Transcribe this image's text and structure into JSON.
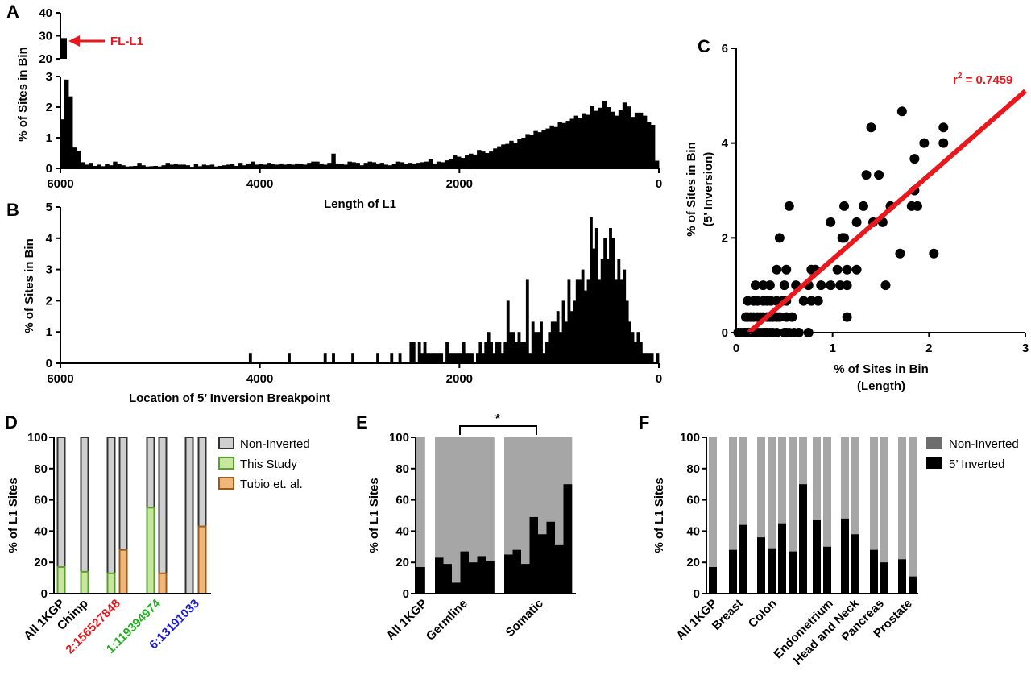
{
  "colors": {
    "black": "#000000",
    "red": "#e8191e",
    "gray": "#a6a6a7",
    "darkgray": "#6d6d6d",
    "green_fill": "#c8e6a0",
    "green_edge": "#5aa02c",
    "orange_fill": "#efb87a",
    "orange_edge": "#9c5b1c",
    "label_red": "#e8191e",
    "label_green": "#22b022",
    "label_blue": "#1a1ad6"
  },
  "chart_data": [
    {
      "panel": "A",
      "type": "bar",
      "title": "",
      "xlabel": "Length of L1",
      "ylabel": "% of Sites in Bin",
      "x_reversed": true,
      "xlim": [
        6000,
        0
      ],
      "ylim": [
        0,
        3
      ],
      "ylim_upper_break": [
        20,
        40
      ],
      "x_ticks": [
        "6000",
        "4000",
        "2000",
        "0"
      ],
      "y_ticks": [
        "0",
        "1",
        "2",
        "3"
      ],
      "y_ticks_upper": [
        "20",
        "30",
        "40"
      ],
      "annotation": "FL-L1",
      "full_length_bin_value": 29,
      "bin_width": 50,
      "values": [
        1.6,
        2.9,
        2.35,
        0.68,
        0.58,
        0.2,
        0.12,
        0.18,
        0.08,
        0.12,
        0.07,
        0.14,
        0.1,
        0.22,
        0.14,
        0.1,
        0.06,
        0.07,
        0.08,
        0.18,
        0.1,
        0.06,
        0.07,
        0.08,
        0.06,
        0.1,
        0.18,
        0.12,
        0.14,
        0.12,
        0.12,
        0.1,
        0.05,
        0.14,
        0.07,
        0.12,
        0.1,
        0.12,
        0.06,
        0.08,
        0.1,
        0.12,
        0.14,
        0.08,
        0.18,
        0.1,
        0.16,
        0.22,
        0.12,
        0.14,
        0.12,
        0.18,
        0.14,
        0.12,
        0.16,
        0.12,
        0.14,
        0.12,
        0.16,
        0.14,
        0.12,
        0.18,
        0.22,
        0.22,
        0.16,
        0.12,
        0.18,
        0.48,
        0.16,
        0.14,
        0.12,
        0.22,
        0.2,
        0.18,
        0.1,
        0.18,
        0.22,
        0.2,
        0.16,
        0.18,
        0.12,
        0.1,
        0.15,
        0.22,
        0.2,
        0.14,
        0.18,
        0.16,
        0.18,
        0.2,
        0.22,
        0.3,
        0.16,
        0.22,
        0.2,
        0.26,
        0.3,
        0.42,
        0.38,
        0.34,
        0.42,
        0.48,
        0.45,
        0.6,
        0.55,
        0.5,
        0.55,
        0.65,
        0.72,
        0.78,
        0.8,
        0.9,
        0.82,
        0.95,
        1.0,
        1.12,
        1.08,
        1.22,
        1.18,
        1.25,
        1.3,
        1.4,
        1.35,
        1.5,
        1.48,
        1.55,
        1.62,
        1.72,
        1.65,
        1.8,
        1.75,
        2.05,
        1.88,
        1.98,
        2.2,
        2.0,
        1.85,
        1.72,
        1.9,
        2.15,
        2.02,
        1.68,
        1.82,
        1.82,
        1.72,
        1.5,
        1.42,
        0.25
      ]
    },
    {
      "panel": "B",
      "type": "bar",
      "title": "",
      "xlabel": "Location of 5’ Inversion Breakpoint",
      "ylabel": "% of Sites in Bin",
      "x_reversed": true,
      "xlim": [
        6000,
        0
      ],
      "ylim": [
        0,
        5
      ],
      "x_ticks": [
        "6000",
        "4000",
        "2000",
        "0"
      ],
      "y_ticks": [
        "0",
        "1",
        "2",
        "3",
        "4",
        "5"
      ],
      "bin_width": 50,
      "values": [
        0,
        0,
        0,
        0,
        0,
        0,
        0,
        0,
        0,
        0,
        0,
        0,
        0,
        0,
        0,
        0,
        0,
        0,
        0,
        0,
        0,
        0,
        0,
        0,
        0,
        0,
        0,
        0,
        0,
        0,
        0,
        0,
        0,
        0,
        0,
        0,
        0,
        0,
        0,
        0,
        0,
        0,
        0,
        0,
        0,
        0,
        0,
        0,
        0,
        0,
        0,
        0,
        0,
        0,
        0,
        0,
        0,
        0,
        0,
        0,
        0,
        0,
        0,
        0,
        0,
        0,
        0,
        0,
        0.33,
        0,
        0,
        0,
        0,
        0,
        0,
        0,
        0,
        0,
        0,
        0,
        0,
        0,
        0.33,
        0,
        0,
        0,
        0,
        0,
        0,
        0,
        0,
        0,
        0,
        0,
        0,
        0.33,
        0,
        0,
        0.33,
        0,
        0,
        0,
        0,
        0,
        0,
        0.33,
        0,
        0,
        0,
        0,
        0,
        0,
        0,
        0,
        0.33,
        0,
        0,
        0,
        0,
        0.33,
        0,
        0,
        0.33,
        0,
        0,
        0,
        0.67,
        0.67,
        0,
        0.67,
        0.33,
        0.67,
        0.33,
        0.33,
        0.33,
        0.33,
        0.33,
        0.33,
        0,
        0.67,
        0.33,
        0.33,
        0.33,
        0.33,
        0.33,
        0.67,
        0.33,
        0.33,
        0.33,
        0,
        0.33,
        0.67,
        0.33,
        0.67,
        1.0,
        0.67,
        0.33,
        0.67,
        0.67,
        0.33,
        0.67,
        2.0,
        1.0,
        1.0,
        0.67,
        1.0,
        0.67,
        0.67,
        2.67,
        0.33,
        1.33,
        1.0,
        1.0,
        1.33,
        0.33,
        0.67,
        1.0,
        1.33,
        1.33,
        1.67,
        1.0,
        2.0,
        1.33,
        2.67,
        1.67,
        2.0,
        2.67,
        2.67,
        3.0,
        2.33,
        2.67,
        4.67,
        3.67,
        4.33,
        2.67,
        3.33,
        4.0,
        3.33,
        4.33,
        4.0,
        2.67,
        3.33,
        2.67,
        3.0,
        2.0,
        1.33,
        1.0,
        0.67,
        1.0,
        0.67,
        0.33,
        0.33,
        0.33,
        0.33,
        0,
        0.33
      ]
    },
    {
      "panel": "C",
      "type": "scatter",
      "title": "",
      "xlabel": "% of Sites in Bin (Length)",
      "ylabel": "% of Sites in Bin (5’ Inversion)",
      "xlabel_lines": [
        "% of Sites in Bin",
        "(Length)"
      ],
      "ylabel_lines": [
        "% of Sites in Bin",
        "(5’ Inversion)"
      ],
      "xlim": [
        0,
        3
      ],
      "ylim": [
        0,
        6
      ],
      "x_ticks": [
        "0",
        "1",
        "2",
        "3"
      ],
      "y_ticks": [
        "0",
        "2",
        "4",
        "6"
      ],
      "annotation": "r",
      "annotation_sup": "2",
      "annotation_rest": " = 0.7459",
      "fit_line": {
        "x": [
          0.13,
          3.0
        ],
        "y": [
          0.0,
          5.1
        ]
      },
      "points": [
        [
          0.02,
          0
        ],
        [
          0.05,
          0
        ],
        [
          0.08,
          0
        ],
        [
          0.1,
          0
        ],
        [
          0.12,
          0
        ],
        [
          0.15,
          0
        ],
        [
          0.18,
          0
        ],
        [
          0.2,
          0
        ],
        [
          0.22,
          0
        ],
        [
          0.25,
          0
        ],
        [
          0.28,
          0
        ],
        [
          0.3,
          0
        ],
        [
          0.32,
          0
        ],
        [
          0.35,
          0
        ],
        [
          0.38,
          0
        ],
        [
          0.42,
          0
        ],
        [
          0.5,
          0
        ],
        [
          0.52,
          0
        ],
        [
          0.55,
          0
        ],
        [
          0.6,
          0
        ],
        [
          0.65,
          0
        ],
        [
          0.75,
          0
        ],
        [
          0.1,
          0.33
        ],
        [
          0.12,
          0.33
        ],
        [
          0.15,
          0.33
        ],
        [
          0.18,
          0.33
        ],
        [
          0.22,
          0.33
        ],
        [
          0.25,
          0.33
        ],
        [
          0.28,
          0.33
        ],
        [
          0.32,
          0.33
        ],
        [
          0.35,
          0.33
        ],
        [
          0.38,
          0.33
        ],
        [
          0.42,
          0.33
        ],
        [
          0.45,
          0.33
        ],
        [
          0.52,
          0.33
        ],
        [
          0.58,
          0.33
        ],
        [
          0.12,
          0.67
        ],
        [
          0.18,
          0.67
        ],
        [
          0.22,
          0.67
        ],
        [
          0.28,
          0.67
        ],
        [
          0.32,
          0.67
        ],
        [
          0.36,
          0.67
        ],
        [
          0.42,
          0.67
        ],
        [
          0.48,
          0.67
        ],
        [
          0.52,
          0.67
        ],
        [
          0.7,
          0.67
        ],
        [
          0.78,
          0.67
        ],
        [
          0.85,
          0.67
        ],
        [
          1.15,
          0.33
        ],
        [
          0.2,
          1.0
        ],
        [
          0.28,
          1.0
        ],
        [
          0.35,
          1.0
        ],
        [
          0.5,
          1.0
        ],
        [
          0.62,
          1.0
        ],
        [
          0.75,
          1.0
        ],
        [
          0.88,
          1.0
        ],
        [
          0.98,
          1.0
        ],
        [
          1.08,
          1.0
        ],
        [
          1.15,
          1.0
        ],
        [
          1.55,
          1.0
        ],
        [
          0.42,
          1.33
        ],
        [
          0.52,
          1.33
        ],
        [
          0.78,
          1.33
        ],
        [
          0.82,
          1.33
        ],
        [
          1.05,
          1.33
        ],
        [
          1.15,
          1.33
        ],
        [
          1.25,
          1.33
        ],
        [
          0.45,
          2.0
        ],
        [
          0.55,
          2.67
        ],
        [
          0.98,
          2.33
        ],
        [
          1.1,
          2.0
        ],
        [
          1.12,
          2.0
        ],
        [
          1.25,
          2.33
        ],
        [
          1.32,
          2.67
        ],
        [
          1.42,
          2.33
        ],
        [
          1.52,
          2.33
        ],
        [
          1.12,
          2.67
        ],
        [
          1.35,
          3.33
        ],
        [
          1.48,
          3.33
        ],
        [
          1.4,
          4.33
        ],
        [
          1.6,
          2.67
        ],
        [
          1.7,
          1.67
        ],
        [
          1.72,
          4.67
        ],
        [
          1.82,
          2.67
        ],
        [
          1.85,
          3.0
        ],
        [
          1.88,
          2.67
        ],
        [
          1.85,
          3.67
        ],
        [
          1.95,
          4.0
        ],
        [
          2.05,
          1.67
        ],
        [
          2.15,
          4.0
        ],
        [
          2.15,
          4.33
        ]
      ]
    },
    {
      "panel": "D",
      "type": "bar",
      "stacked": true,
      "xlabel": "",
      "ylabel": "% of L1 Sites",
      "ylim": [
        0,
        100
      ],
      "y_ticks": [
        "0",
        "20",
        "40",
        "60",
        "80",
        "100"
      ],
      "legend": [
        "Non-Inverted",
        "This Study",
        "Tubio et. al."
      ],
      "categories": [
        "All 1KGP",
        "Chimp",
        "2:156527848",
        "1:119394974",
        "6:13191033"
      ],
      "bars": [
        {
          "group": "All 1KGP",
          "series": "This Study",
          "inverted": 17
        },
        {
          "group": "Chimp",
          "series": "This Study",
          "inverted": 14
        },
        {
          "group": "2:156527848",
          "series": "This Study",
          "inverted": 13
        },
        {
          "group": "2:156527848",
          "series": "Tubio et. al.",
          "inverted": 28
        },
        {
          "group": "1:119394974",
          "series": "This Study",
          "inverted": 55
        },
        {
          "group": "1:119394974",
          "series": "Tubio et. al.",
          "inverted": 13
        },
        {
          "group": "6:13191033",
          "series": "This Study",
          "inverted": 0
        },
        {
          "group": "6:13191033",
          "series": "Tubio et. al.",
          "inverted": 43
        }
      ]
    },
    {
      "panel": "E",
      "type": "bar",
      "stacked": true,
      "xlabel": "",
      "ylabel": "% of L1 Sites",
      "ylim": [
        0,
        100
      ],
      "y_ticks": [
        "0",
        "20",
        "40",
        "60",
        "80",
        "100"
      ],
      "categories": [
        "All 1KGP",
        "Germline",
        "Somatic"
      ],
      "significance": "*",
      "groups": [
        {
          "name": "All 1KGP",
          "inverted": [
            17
          ]
        },
        {
          "name": "Germline",
          "inverted": [
            23,
            19,
            7,
            27,
            20,
            24,
            21
          ]
        },
        {
          "name": "Somatic",
          "inverted": [
            25,
            28,
            19,
            49,
            38,
            46,
            31,
            70
          ]
        }
      ]
    },
    {
      "panel": "F",
      "type": "bar",
      "stacked": true,
      "xlabel": "",
      "ylabel": "% of L1 Sites",
      "ylim": [
        0,
        100
      ],
      "y_ticks": [
        "0",
        "20",
        "40",
        "60",
        "80",
        "100"
      ],
      "legend": [
        "Non-Inverted",
        "5’ Inverted"
      ],
      "categories": [
        "All 1KGP",
        "Breast",
        "Colon",
        "Endometrium",
        "Head and Neck",
        "Pancreas",
        "Prostate"
      ],
      "groups": [
        {
          "name": "All 1KGP",
          "inverted": [
            17
          ]
        },
        {
          "name": "Breast",
          "inverted": [
            28,
            44
          ]
        },
        {
          "name": "Colon",
          "inverted": [
            36,
            29,
            45,
            27,
            70
          ]
        },
        {
          "name": "Endometrium",
          "inverted": [
            47,
            30
          ]
        },
        {
          "name": "Head and Neck",
          "inverted": [
            48,
            38
          ]
        },
        {
          "name": "Pancreas",
          "inverted": [
            28,
            20
          ]
        },
        {
          "name": "Prostate",
          "inverted": [
            22,
            11
          ]
        }
      ]
    }
  ],
  "panel_letters": [
    "A",
    "B",
    "C",
    "D",
    "E",
    "F"
  ]
}
